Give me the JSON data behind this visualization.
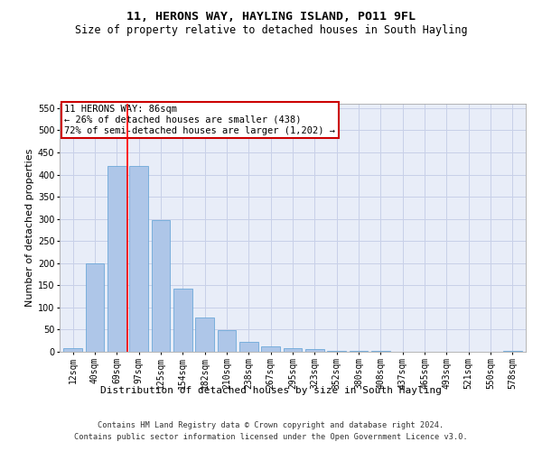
{
  "title": "11, HERONS WAY, HAYLING ISLAND, PO11 9FL",
  "subtitle": "Size of property relative to detached houses in South Hayling",
  "xlabel": "Distribution of detached houses by size in South Hayling",
  "ylabel": "Number of detached properties",
  "categories": [
    "12sqm",
    "40sqm",
    "69sqm",
    "97sqm",
    "125sqm",
    "154sqm",
    "182sqm",
    "210sqm",
    "238sqm",
    "267sqm",
    "295sqm",
    "323sqm",
    "352sqm",
    "380sqm",
    "408sqm",
    "437sqm",
    "465sqm",
    "493sqm",
    "521sqm",
    "550sqm",
    "578sqm"
  ],
  "values": [
    8,
    200,
    420,
    420,
    298,
    142,
    77,
    48,
    23,
    12,
    8,
    7,
    3,
    2,
    2,
    0,
    0,
    0,
    0,
    0,
    3
  ],
  "bar_color": "#aec6e8",
  "bar_edge_color": "#5a9fd4",
  "red_line_x": 2.5,
  "annotation_text": "11 HERONS WAY: 86sqm\n← 26% of detached houses are smaller (438)\n72% of semi-detached houses are larger (1,202) →",
  "annotation_box_color": "#ffffff",
  "annotation_box_edge_color": "#cc0000",
  "ylim": [
    0,
    560
  ],
  "yticks": [
    0,
    50,
    100,
    150,
    200,
    250,
    300,
    350,
    400,
    450,
    500,
    550
  ],
  "footer_line1": "Contains HM Land Registry data © Crown copyright and database right 2024.",
  "footer_line2": "Contains public sector information licensed under the Open Government Licence v3.0.",
  "background_color": "#e8edf8",
  "grid_color": "#c8d0e8",
  "title_fontsize": 9.5,
  "subtitle_fontsize": 8.5,
  "axis_label_fontsize": 8,
  "tick_fontsize": 7,
  "annotation_fontsize": 7.5,
  "footer_fontsize": 6.2
}
